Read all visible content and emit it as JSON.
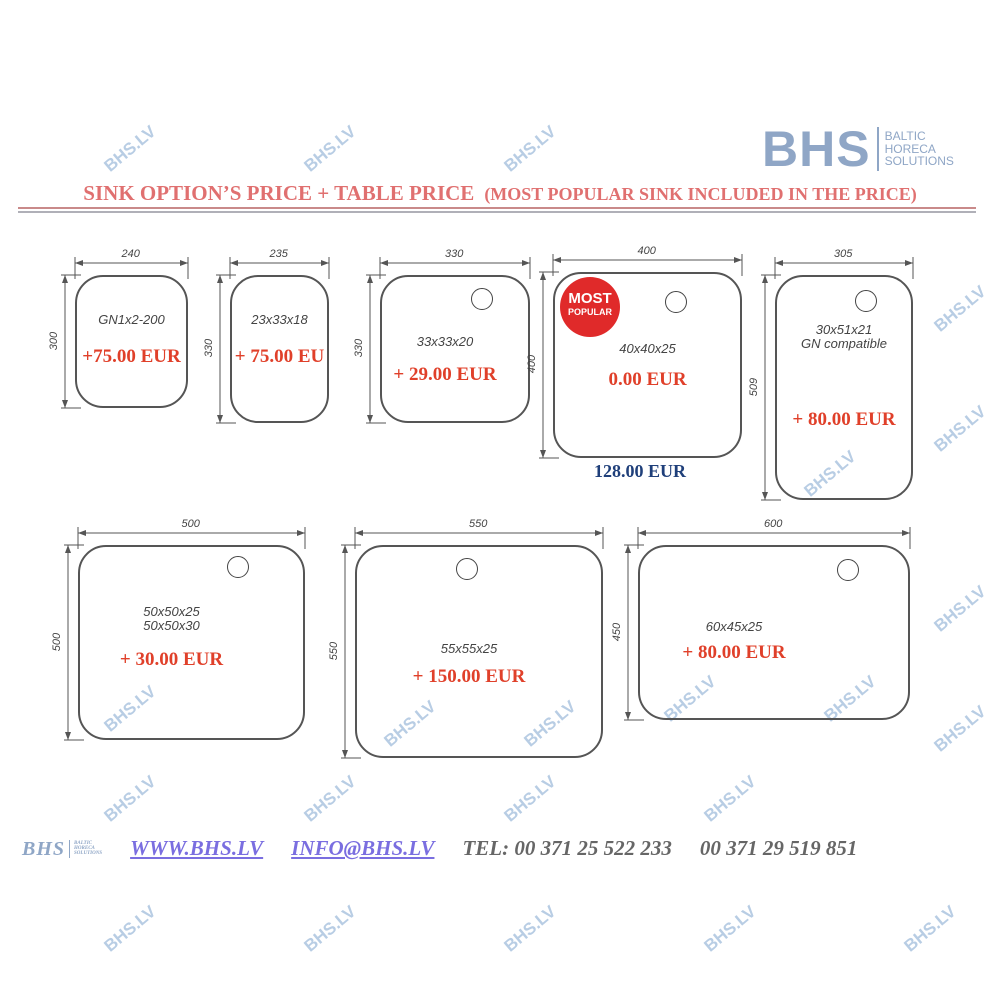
{
  "logo": {
    "mark": "BHS",
    "line1": "BALTIC",
    "line2": "HORECA",
    "line3": "SOLUTIONS"
  },
  "title": {
    "main": "SINK OPTION’S PRICE + TABLE PRICE",
    "sub": "(MOST POPULAR SINK INCLUDED IN THE PRICE)"
  },
  "watermark": "BHS.LV",
  "sinks": [
    {
      "width": "240",
      "height": "300",
      "model": "GN1x2-200",
      "price": "+75.00 EUR"
    },
    {
      "width": "235",
      "height": "330",
      "model": "23x33x18",
      "price": "+ 75.00 EU"
    },
    {
      "width": "330",
      "height": "330",
      "model": "33x33x20",
      "price": "+ 29.00 EUR"
    },
    {
      "width": "400",
      "height": "400",
      "model": "40x40x25",
      "price": "0.00 EUR"
    },
    {
      "width": "305",
      "height": "509",
      "model": "30x51x21\nGN compatible",
      "price": "+ 80.00 EUR"
    },
    {
      "width": "500",
      "height": "500",
      "model": "50x50x25\n50x50x30",
      "price": "+ 30.00 EUR"
    },
    {
      "width": "550",
      "height": "550",
      "model": "55x55x25",
      "price": "+ 150.00 EUR"
    },
    {
      "width": "600",
      "height": "450",
      "model": "60x45x25",
      "price": "+ 80.00 EUR"
    }
  ],
  "badge": {
    "line1": "MOST",
    "line2": "POPULAR"
  },
  "base_price": "128.00 EUR",
  "footer": {
    "website": "WWW.BHS.LV",
    "email": "INFO@BHS.LV",
    "tel": "TEL: 00 371  25 522 233",
    "tel2": "00 371 29 519 851"
  },
  "colors": {
    "title": "#e07070",
    "price": "#e0402a",
    "base_price": "#1f3f7a",
    "watermark": "#b8cde4",
    "logo": "#8fa6c6",
    "links": "#7a6ee0"
  }
}
